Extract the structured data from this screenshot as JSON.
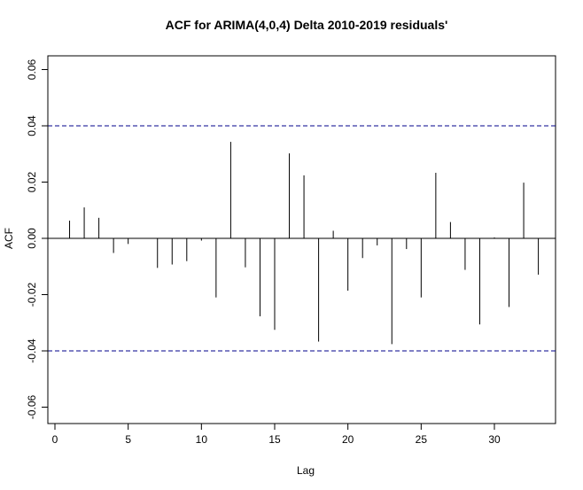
{
  "chart_data": {
    "type": "bar",
    "title": "ACF for ARIMA(4,0,4) Delta 2010-2019 residuals'",
    "xlabel": "Lag",
    "ylabel": "ACF",
    "xlim": [
      0,
      34
    ],
    "ylim": [
      -0.065,
      0.065
    ],
    "x_ticks": [
      0,
      5,
      10,
      15,
      20,
      25,
      30
    ],
    "y_ticks": [
      -0.06,
      -0.04,
      -0.02,
      0.0,
      0.02,
      0.04,
      0.06
    ],
    "y_tick_labels": [
      "-0.06",
      "-0.04",
      "-0.02",
      "0.00",
      "0.02",
      "0.04",
      "0.06"
    ],
    "x_tick_labels": [
      "0",
      "5",
      "10",
      "15",
      "20",
      "25",
      "30"
    ],
    "lags": [
      1,
      2,
      3,
      4,
      5,
      6,
      7,
      8,
      9,
      10,
      11,
      12,
      13,
      14,
      15,
      16,
      17,
      18,
      19,
      20,
      21,
      22,
      23,
      24,
      25,
      26,
      27,
      28,
      29,
      30,
      31,
      32,
      33
    ],
    "values": [
      0.0063,
      0.011,
      0.0073,
      -0.0052,
      -0.002,
      0.0,
      -0.0105,
      -0.0093,
      -0.0081,
      -0.0008,
      -0.021,
      0.0343,
      -0.0103,
      -0.0277,
      -0.0325,
      0.0302,
      0.0224,
      -0.0367,
      0.0027,
      -0.0186,
      -0.007,
      -0.0025,
      -0.0376,
      -0.0038,
      -0.021,
      0.0233,
      0.0058,
      -0.0112,
      -0.0306,
      0.0003,
      -0.0244,
      0.0198,
      -0.0129
    ],
    "confidence_bound": 0.04,
    "colors": {
      "line": "#000000",
      "bounds": "#00008b"
    },
    "grid": false
  }
}
